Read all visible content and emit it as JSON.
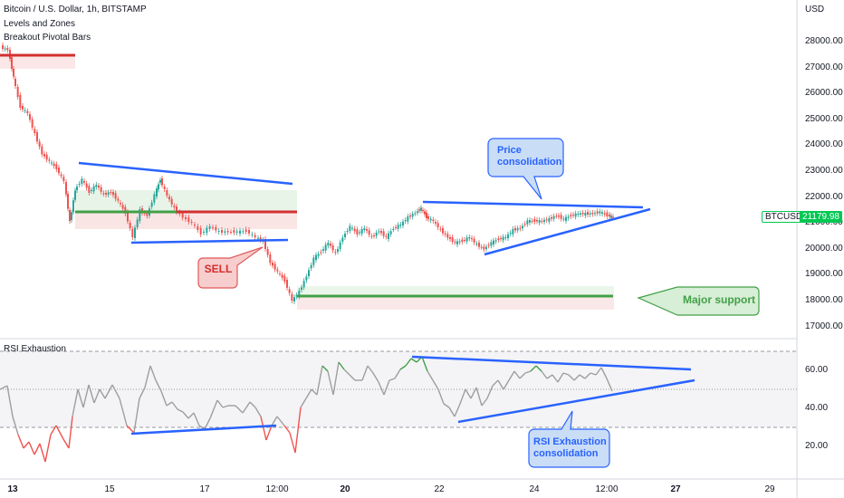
{
  "legend": {
    "title": "Bitcoin / U.S. Dollar, 1h, BITSTAMP",
    "indicator1": "Levels and Zones",
    "indicator2": "Breakout Pivotal Bars"
  },
  "price_axis": {
    "currency": "USD",
    "labels": [
      "28000.00",
      "27000.00",
      "26000.00",
      "25000.00",
      "24000.00",
      "23000.00",
      "22000.00",
      "21000.00",
      "20000.00",
      "19000.00",
      "18000.00",
      "17000.00"
    ]
  },
  "symbol_tag": {
    "symbol": "BTCUSD",
    "price": "21179.98"
  },
  "rsi_panel": {
    "title": "RSI Exhaustion",
    "labels": [
      "60.00",
      "40.00",
      "20.00"
    ]
  },
  "time_axis": {
    "labels": [
      {
        "text": "13",
        "bold": true
      },
      {
        "text": "15",
        "bold": false
      },
      {
        "text": "17",
        "bold": false
      },
      {
        "text": "12:00",
        "bold": false
      },
      {
        "text": "20",
        "bold": true
      },
      {
        "text": "22",
        "bold": false
      },
      {
        "text": "24",
        "bold": false
      },
      {
        "text": "12:00",
        "bold": false
      },
      {
        "text": "27",
        "bold": true
      },
      {
        "text": "29",
        "bold": false
      }
    ]
  },
  "annotations": {
    "sell": "SELL",
    "price_consolidation_line1": "Price",
    "price_consolidation_line2": "consolidation",
    "major_support": "Major support",
    "rsi_consolidation_line1": "RSI Exhaustion",
    "rsi_consolidation_line2": "consolidation"
  },
  "colors": {
    "up_candle": "#26a69a",
    "down_candle": "#ef5350",
    "trendline": "#2962ff",
    "resistance": "#d32f2f",
    "support": "#43a047",
    "rsi_line": "#9e9e9e",
    "symbol_tag_bg": "#00c853"
  }
}
